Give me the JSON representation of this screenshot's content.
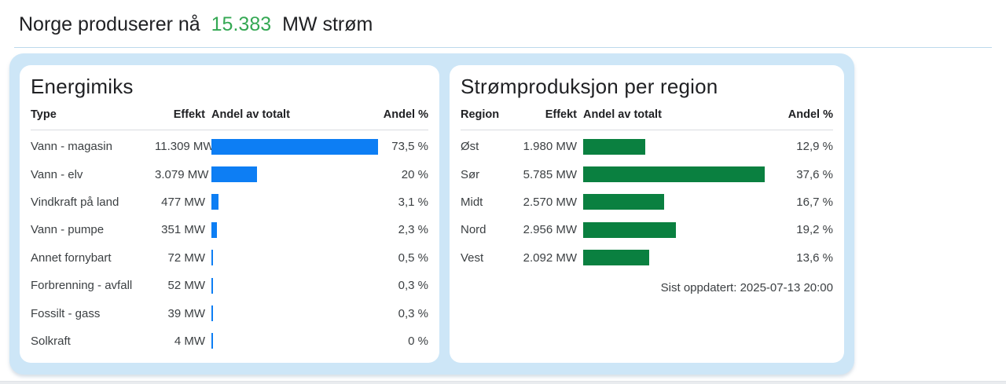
{
  "header": {
    "title_prefix": "Norge produserer nå",
    "title_value": "15.383",
    "title_suffix": "MW strøm"
  },
  "colors": {
    "title_value_green": "#34a853",
    "bar_blue": "#0d7ef4",
    "bar_green": "#0a8040",
    "container_bg": "#cde6f7"
  },
  "energy_panel": {
    "title": "Energimiks",
    "columns": {
      "type": "Type",
      "effect": "Effekt",
      "share_bar": "Andel av totalt",
      "share_pct": "Andel %"
    },
    "rows": [
      {
        "label": "Vann - magasin",
        "effect": "11.309 MW",
        "pct": 73.5,
        "pct_label": "73,5 %"
      },
      {
        "label": "Vann - elv",
        "effect": "3.079 MW",
        "pct": 20,
        "pct_label": "20 %"
      },
      {
        "label": "Vindkraft på land",
        "effect": "477 MW",
        "pct": 3.1,
        "pct_label": "3,1 %"
      },
      {
        "label": "Vann - pumpe",
        "effect": "351 MW",
        "pct": 2.3,
        "pct_label": "2,3 %"
      },
      {
        "label": "Annet fornybart",
        "effect": "72 MW",
        "pct": 0.5,
        "pct_label": "0,5 %"
      },
      {
        "label": "Forbrenning - avfall",
        "effect": "52 MW",
        "pct": 0.3,
        "pct_label": "0,3 %"
      },
      {
        "label": "Fossilt - gass",
        "effect": "39 MW",
        "pct": 0.3,
        "pct_label": "0,3 %"
      },
      {
        "label": "Solkraft",
        "effect": "4 MW",
        "pct": 0,
        "pct_label": "0 %"
      }
    ]
  },
  "region_panel": {
    "title": "Strømproduksjon per region",
    "columns": {
      "type": "Region",
      "effect": "Effekt",
      "share_bar": "Andel av totalt",
      "share_pct": "Andel %"
    },
    "rows": [
      {
        "label": "Øst",
        "effect": "1.980 MW",
        "pct": 12.9,
        "pct_label": "12,9 %"
      },
      {
        "label": "Sør",
        "effect": "5.785 MW",
        "pct": 37.6,
        "pct_label": "37,6 %"
      },
      {
        "label": "Midt",
        "effect": "2.570 MW",
        "pct": 16.7,
        "pct_label": "16,7 %"
      },
      {
        "label": "Nord",
        "effect": "2.956 MW",
        "pct": 19.2,
        "pct_label": "19,2 %"
      },
      {
        "label": "Vest",
        "effect": "2.092 MW",
        "pct": 13.6,
        "pct_label": "13,6 %"
      }
    ],
    "updated": "Sist oppdatert: 2025-07-13 20:00"
  },
  "chart_data": [
    {
      "type": "bar",
      "orientation": "horizontal",
      "title": "Energimiks",
      "categories": [
        "Vann - magasin",
        "Vann - elv",
        "Vindkraft på land",
        "Vann - pumpe",
        "Annet fornybart",
        "Forbrenning - avfall",
        "Fossilt - gass",
        "Solkraft"
      ],
      "series": [
        {
          "name": "Effekt (MW)",
          "values": [
            11309,
            3079,
            477,
            351,
            72,
            52,
            39,
            4
          ]
        },
        {
          "name": "Andel %",
          "values": [
            73.5,
            20,
            3.1,
            2.3,
            0.5,
            0.3,
            0.3,
            0
          ]
        }
      ],
      "xlabel": "Andel av totalt",
      "ylabel": "Type",
      "xlim": [
        0,
        100
      ],
      "grid": false,
      "legend_position": "none",
      "bar_color": "#0d7ef4"
    },
    {
      "type": "bar",
      "orientation": "horizontal",
      "title": "Strømproduksjon per region",
      "categories": [
        "Øst",
        "Sør",
        "Midt",
        "Nord",
        "Vest"
      ],
      "series": [
        {
          "name": "Effekt (MW)",
          "values": [
            1980,
            5785,
            2570,
            2956,
            2092
          ]
        },
        {
          "name": "Andel %",
          "values": [
            12.9,
            37.6,
            16.7,
            19.2,
            13.6
          ]
        }
      ],
      "xlabel": "Andel av totalt",
      "ylabel": "Region",
      "xlim": [
        0,
        50
      ],
      "grid": false,
      "legend_position": "none",
      "bar_color": "#0a8040",
      "annotation": "Sist oppdatert: 2025-07-13 20:00"
    }
  ]
}
